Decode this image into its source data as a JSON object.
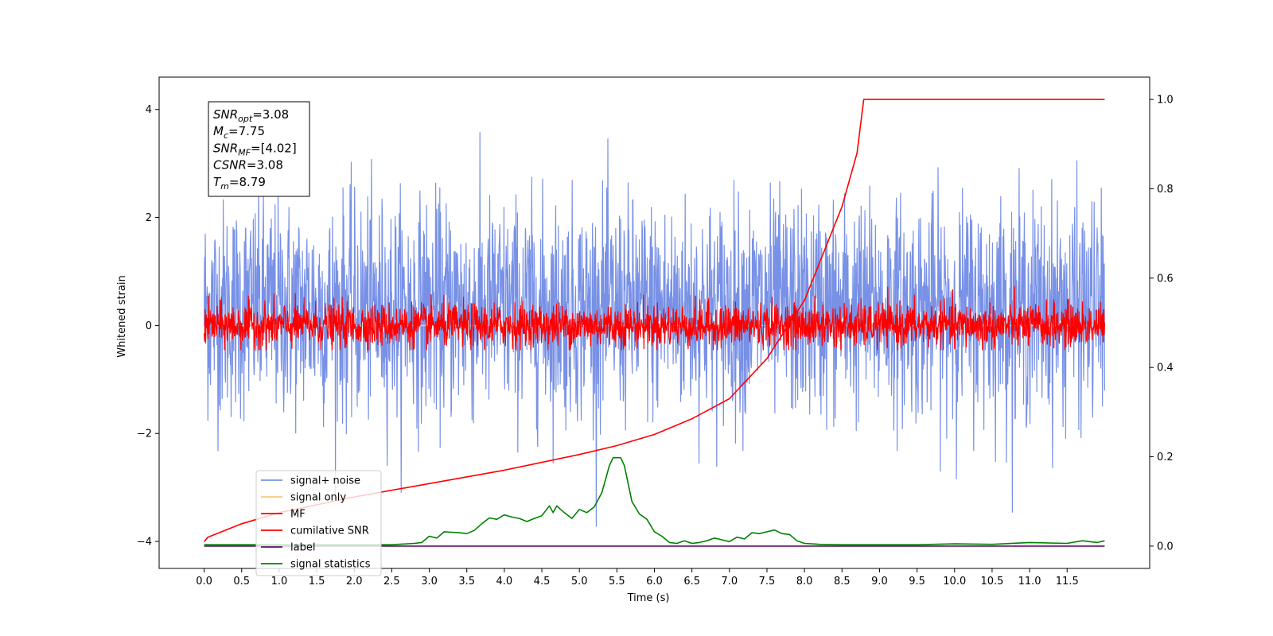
{
  "chart_data": {
    "type": "line",
    "xlabel": "Time (s)",
    "ylabel": "Whitened strain",
    "xlim": [
      -0.6,
      12.6
    ],
    "ylim": [
      -4.5,
      4.6
    ],
    "y2lim": [
      -0.05,
      1.05
    ],
    "x_ticks": [
      0.0,
      0.5,
      1.0,
      1.5,
      2.0,
      2.5,
      3.0,
      3.5,
      4.0,
      4.5,
      5.0,
      5.5,
      6.0,
      6.5,
      7.0,
      7.5,
      8.0,
      8.5,
      9.0,
      9.5,
      10.0,
      10.5,
      11.0,
      11.5
    ],
    "x_tick_labels": [
      "0.0",
      "0.5",
      "1.0",
      "1.5",
      "2.0",
      "2.5",
      "3.0",
      "3.5",
      "4.0",
      "4.5",
      "5.0",
      "5.5",
      "6.0",
      "6.5",
      "7.0",
      "7.5",
      "8.0",
      "8.5",
      "9.0",
      "9.5",
      "10.0",
      "10.5",
      "11.0",
      "11.5"
    ],
    "y_ticks": [
      -4,
      -2,
      0,
      2,
      4
    ],
    "y_tick_labels": [
      "−4",
      "−2",
      "0",
      "2",
      "4"
    ],
    "y2_ticks": [
      0.0,
      0.2,
      0.4,
      0.6,
      0.8,
      1.0
    ],
    "y2_tick_labels": [
      "0.0",
      "0.2",
      "0.4",
      "0.6",
      "0.8",
      "1.0"
    ],
    "grid": false,
    "legend_position": "lower-left",
    "series": [
      {
        "name": "signal+ noise",
        "axis": "left",
        "color": "#7891e6",
        "style": "noise",
        "x_range": [
          0.0,
          12.0
        ],
        "mean": 0.3,
        "spread": 1.0,
        "max": 4.15,
        "min": -3.9
      },
      {
        "name": "signal only",
        "axis": "left",
        "color": "#f5cd78",
        "style": "flat",
        "x_range": [
          0.0,
          12.0
        ],
        "values": [
          0.0
        ]
      },
      {
        "name": "MF",
        "axis": "left",
        "color": "#ff0000",
        "style": "noise",
        "x_range": [
          0.0,
          12.0
        ],
        "mean": 0.0,
        "spread": 0.2,
        "max": 0.95,
        "min": -0.45
      },
      {
        "name": "cumilative SNR",
        "axis": "right",
        "color": "#ff0000",
        "style": "line",
        "x": [
          0.0,
          0.05,
          0.5,
          1.0,
          2.0,
          3.0,
          4.0,
          5.0,
          5.5,
          6.0,
          6.5,
          7.0,
          7.5,
          8.0,
          8.5,
          8.7,
          8.79,
          8.8,
          12.0
        ],
        "y": [
          0.01,
          0.02,
          0.05,
          0.075,
          0.11,
          0.14,
          0.17,
          0.205,
          0.225,
          0.25,
          0.285,
          0.33,
          0.42,
          0.55,
          0.76,
          0.88,
          1.0,
          1.0,
          1.0
        ]
      },
      {
        "name": "label",
        "axis": "right",
        "color": "#5b0f6a",
        "style": "line",
        "x": [
          0.0,
          12.0
        ],
        "y": [
          0.0,
          0.0
        ]
      },
      {
        "name": "signal statistics",
        "axis": "right",
        "color": "#008000",
        "style": "line",
        "x": [
          0.0,
          0.5,
          1.0,
          1.5,
          2.0,
          2.5,
          2.8,
          2.9,
          3.0,
          3.1,
          3.2,
          3.3,
          3.4,
          3.5,
          3.6,
          3.7,
          3.8,
          3.9,
          4.0,
          4.1,
          4.2,
          4.3,
          4.4,
          4.5,
          4.6,
          4.65,
          4.7,
          4.75,
          4.8,
          4.9,
          5.0,
          5.1,
          5.2,
          5.3,
          5.4,
          5.45,
          5.5,
          5.55,
          5.6,
          5.7,
          5.8,
          5.9,
          6.0,
          6.1,
          6.2,
          6.3,
          6.4,
          6.5,
          6.6,
          6.7,
          6.8,
          6.9,
          7.0,
          7.1,
          7.2,
          7.3,
          7.4,
          7.5,
          7.6,
          7.7,
          7.8,
          7.9,
          8.0,
          8.2,
          8.5,
          9.0,
          9.5,
          10.0,
          10.5,
          11.0,
          11.5,
          11.7,
          11.9,
          12.0
        ],
        "y": [
          0.003,
          0.003,
          0.003,
          0.003,
          0.003,
          0.003,
          0.006,
          0.008,
          0.022,
          0.018,
          0.032,
          0.031,
          0.03,
          0.028,
          0.035,
          0.05,
          0.063,
          0.06,
          0.07,
          0.065,
          0.062,
          0.055,
          0.062,
          0.068,
          0.09,
          0.075,
          0.09,
          0.082,
          0.075,
          0.062,
          0.082,
          0.075,
          0.088,
          0.12,
          0.18,
          0.198,
          0.198,
          0.198,
          0.18,
          0.1,
          0.072,
          0.06,
          0.032,
          0.022,
          0.008,
          0.006,
          0.012,
          0.006,
          0.008,
          0.012,
          0.018,
          0.014,
          0.01,
          0.02,
          0.016,
          0.03,
          0.028,
          0.032,
          0.036,
          0.028,
          0.026,
          0.012,
          0.006,
          0.004,
          0.003,
          0.003,
          0.003,
          0.005,
          0.004,
          0.008,
          0.006,
          0.012,
          0.008,
          0.012
        ]
      }
    ],
    "annotations": [
      {
        "base": "SNR",
        "sub": "opt",
        "value": "=3.08"
      },
      {
        "base": "M",
        "sub": "c",
        "value": "=7.75"
      },
      {
        "base": "SNR",
        "sub": "MF",
        "value": "=[4.02]"
      },
      {
        "base": "CSNR",
        "sub": "",
        "value": "=3.08"
      },
      {
        "base": "T",
        "sub": "m",
        "value": "=8.79"
      }
    ]
  }
}
